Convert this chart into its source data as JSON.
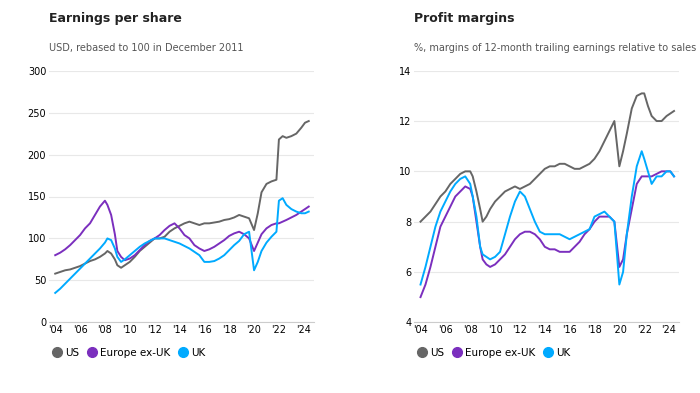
{
  "title1": "Earnings per share",
  "subtitle1": "USD, rebased to 100 in December 2011",
  "title2": "Profit margins",
  "subtitle2": "%, margins of 12-month trailing earnings relative to sales",
  "colors": {
    "US": "#666666",
    "Europe": "#7B2FBE",
    "UK": "#00AAFF"
  },
  "eps_years": [
    2004.0,
    2004.4,
    2004.8,
    2005.2,
    2005.6,
    2006.0,
    2006.4,
    2006.8,
    2007.2,
    2007.6,
    2008.0,
    2008.2,
    2008.5,
    2008.8,
    2009.0,
    2009.3,
    2009.6,
    2010.0,
    2010.4,
    2010.8,
    2011.2,
    2011.6,
    2012.0,
    2012.4,
    2012.8,
    2013.2,
    2013.6,
    2014.0,
    2014.4,
    2014.8,
    2015.2,
    2015.6,
    2016.0,
    2016.4,
    2016.8,
    2017.2,
    2017.6,
    2018.0,
    2018.4,
    2018.8,
    2019.2,
    2019.6,
    2020.0,
    2020.3,
    2020.6,
    2021.0,
    2021.4,
    2021.8,
    2022.0,
    2022.3,
    2022.6,
    2023.0,
    2023.4,
    2023.8,
    2024.1,
    2024.4
  ],
  "eps_us": [
    58,
    60,
    62,
    63,
    65,
    67,
    70,
    73,
    75,
    78,
    82,
    85,
    82,
    75,
    68,
    65,
    68,
    72,
    78,
    85,
    90,
    95,
    100,
    100,
    102,
    108,
    112,
    115,
    118,
    120,
    118,
    116,
    118,
    118,
    119,
    120,
    122,
    123,
    125,
    128,
    126,
    124,
    110,
    130,
    155,
    165,
    168,
    170,
    218,
    222,
    220,
    222,
    225,
    232,
    238,
    240
  ],
  "eps_europe": [
    80,
    83,
    87,
    92,
    98,
    104,
    112,
    118,
    128,
    138,
    145,
    140,
    128,
    105,
    85,
    78,
    74,
    76,
    80,
    86,
    92,
    97,
    100,
    104,
    110,
    115,
    118,
    112,
    104,
    100,
    92,
    88,
    85,
    87,
    90,
    94,
    98,
    103,
    106,
    108,
    105,
    100,
    85,
    95,
    105,
    112,
    116,
    118,
    118,
    120,
    122,
    125,
    128,
    132,
    135,
    138
  ],
  "eps_uk": [
    35,
    40,
    46,
    52,
    58,
    64,
    70,
    76,
    82,
    88,
    95,
    100,
    98,
    88,
    78,
    72,
    75,
    80,
    85,
    90,
    94,
    97,
    100,
    100,
    100,
    98,
    96,
    94,
    91,
    88,
    84,
    80,
    72,
    72,
    73,
    76,
    80,
    86,
    92,
    97,
    105,
    108,
    62,
    72,
    85,
    95,
    102,
    108,
    145,
    148,
    140,
    135,
    132,
    130,
    130,
    132
  ],
  "pm_years": [
    2004.0,
    2004.4,
    2004.8,
    2005.2,
    2005.6,
    2006.0,
    2006.4,
    2006.8,
    2007.2,
    2007.6,
    2008.0,
    2008.2,
    2008.5,
    2008.8,
    2009.0,
    2009.3,
    2009.6,
    2010.0,
    2010.4,
    2010.8,
    2011.2,
    2011.6,
    2012.0,
    2012.4,
    2012.8,
    2013.2,
    2013.6,
    2014.0,
    2014.4,
    2014.8,
    2015.2,
    2015.6,
    2016.0,
    2016.4,
    2016.8,
    2017.2,
    2017.6,
    2018.0,
    2018.4,
    2018.8,
    2019.2,
    2019.6,
    2020.0,
    2020.3,
    2020.6,
    2021.0,
    2021.4,
    2021.8,
    2022.0,
    2022.3,
    2022.6,
    2023.0,
    2023.4,
    2023.8,
    2024.1,
    2024.4
  ],
  "pm_us": [
    8.0,
    8.2,
    8.4,
    8.7,
    9.0,
    9.2,
    9.5,
    9.7,
    9.9,
    10.0,
    10.0,
    9.8,
    9.2,
    8.5,
    8.0,
    8.2,
    8.5,
    8.8,
    9.0,
    9.2,
    9.3,
    9.4,
    9.3,
    9.4,
    9.5,
    9.7,
    9.9,
    10.1,
    10.2,
    10.2,
    10.3,
    10.3,
    10.2,
    10.1,
    10.1,
    10.2,
    10.3,
    10.5,
    10.8,
    11.2,
    11.6,
    12.0,
    10.2,
    10.8,
    11.5,
    12.5,
    13.0,
    13.1,
    13.1,
    12.6,
    12.2,
    12.0,
    12.0,
    12.2,
    12.3,
    12.4
  ],
  "pm_europe": [
    5.0,
    5.5,
    6.2,
    7.0,
    7.8,
    8.2,
    8.6,
    9.0,
    9.2,
    9.4,
    9.3,
    9.0,
    8.0,
    7.0,
    6.5,
    6.3,
    6.2,
    6.3,
    6.5,
    6.7,
    7.0,
    7.3,
    7.5,
    7.6,
    7.6,
    7.5,
    7.3,
    7.0,
    6.9,
    6.9,
    6.8,
    6.8,
    6.8,
    7.0,
    7.2,
    7.5,
    7.7,
    8.0,
    8.2,
    8.2,
    8.2,
    8.0,
    6.2,
    6.5,
    7.5,
    8.5,
    9.5,
    9.8,
    9.8,
    9.8,
    9.8,
    9.9,
    10.0,
    10.0,
    10.0,
    9.8
  ],
  "pm_uk": [
    5.5,
    6.2,
    7.0,
    7.8,
    8.4,
    8.8,
    9.2,
    9.5,
    9.7,
    9.8,
    9.5,
    9.0,
    8.2,
    7.0,
    6.7,
    6.6,
    6.5,
    6.6,
    6.8,
    7.5,
    8.2,
    8.8,
    9.2,
    9.0,
    8.5,
    8.0,
    7.6,
    7.5,
    7.5,
    7.5,
    7.5,
    7.4,
    7.3,
    7.4,
    7.5,
    7.6,
    7.7,
    8.2,
    8.3,
    8.4,
    8.2,
    8.0,
    5.5,
    6.0,
    7.5,
    9.0,
    10.2,
    10.8,
    10.5,
    10.0,
    9.5,
    9.8,
    9.8,
    10.0,
    10.0,
    9.8
  ],
  "eps_ylim": [
    0,
    300
  ],
  "pm_ylim": [
    4,
    14
  ],
  "eps_yticks": [
    0,
    50,
    100,
    150,
    200,
    250,
    300
  ],
  "pm_yticks": [
    4,
    6,
    8,
    10,
    12,
    14
  ],
  "x_ticks": [
    2004,
    2006,
    2008,
    2010,
    2012,
    2014,
    2016,
    2018,
    2020,
    2022,
    2024
  ],
  "x_tick_labels": [
    "'04",
    "'06",
    "'08",
    "'10",
    "'12",
    "'14",
    "'16",
    "'18",
    "'20",
    "'22",
    "'24"
  ],
  "legend_labels": [
    "US",
    "Europe ex-UK",
    "UK"
  ],
  "bg_color": "#ffffff",
  "fig_bg": "#ffffff",
  "grid_color": "#e8e8e8",
  "line_width": 1.4
}
